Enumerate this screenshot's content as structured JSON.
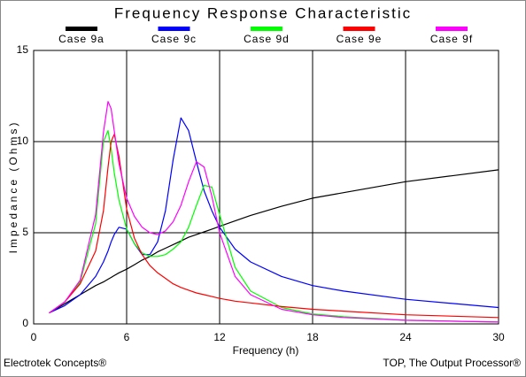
{
  "chart_data": {
    "type": "line",
    "title": "Frequency Response Characteristic",
    "x_label": "Frequency (h)",
    "y_label": "Impedance (Ohms)",
    "footer_left": "Electrotek Concepts®",
    "footer_right": "TOP, The Output Processor®",
    "x": [
      1,
      2,
      3,
      4,
      4.5,
      4.8,
      5,
      5.2,
      5.5,
      6,
      6.5,
      7,
      7.5,
      8,
      8.5,
      9,
      9.5,
      10,
      10.5,
      11,
      11.5,
      12,
      13,
      14,
      16,
      18,
      20,
      24,
      30
    ],
    "series": [
      {
        "name": "Case 9a",
        "color": "#000000",
        "values": [
          0.6,
          1.1,
          1.6,
          2.1,
          2.3,
          2.45,
          2.55,
          2.65,
          2.8,
          3.0,
          3.25,
          3.5,
          3.7,
          3.95,
          4.15,
          4.35,
          4.55,
          4.75,
          4.9,
          5.05,
          5.2,
          5.35,
          5.65,
          5.95,
          6.45,
          6.9,
          7.2,
          7.8,
          8.45
        ]
      },
      {
        "name": "Case 9c",
        "color": "#0000ff",
        "values": [
          0.6,
          1.0,
          1.6,
          2.6,
          3.4,
          4.0,
          4.5,
          4.9,
          5.3,
          5.2,
          4.4,
          3.8,
          3.8,
          4.5,
          6.2,
          9.0,
          11.3,
          10.6,
          8.9,
          7.3,
          6.2,
          5.3,
          4.1,
          3.4,
          2.6,
          2.1,
          1.8,
          1.35,
          0.9
        ]
      },
      {
        "name": "Case 9d",
        "color": "#00ff00",
        "values": [
          0.6,
          1.2,
          2.3,
          5.5,
          10.0,
          10.6,
          9.6,
          8.3,
          6.8,
          5.2,
          4.4,
          3.9,
          3.7,
          3.7,
          3.8,
          4.1,
          4.5,
          5.3,
          6.5,
          7.6,
          7.5,
          6.0,
          3.1,
          1.8,
          0.9,
          0.55,
          0.4,
          0.2,
          0.1
        ]
      },
      {
        "name": "Case 9e",
        "color": "#ff0000",
        "values": [
          0.6,
          1.2,
          2.2,
          4.0,
          6.2,
          8.6,
          10.0,
          10.4,
          9.2,
          6.3,
          4.7,
          3.8,
          3.2,
          2.8,
          2.5,
          2.2,
          2.0,
          1.85,
          1.7,
          1.6,
          1.5,
          1.4,
          1.25,
          1.15,
          0.95,
          0.8,
          0.7,
          0.5,
          0.35
        ]
      },
      {
        "name": "Case 9f",
        "color": "#ff00ff",
        "values": [
          0.6,
          1.2,
          2.4,
          6.0,
          10.5,
          12.2,
          11.8,
          10.6,
          8.8,
          6.9,
          5.9,
          5.3,
          5.0,
          4.9,
          5.1,
          5.6,
          6.5,
          7.8,
          8.9,
          8.6,
          7.0,
          5.0,
          2.6,
          1.6,
          0.8,
          0.5,
          0.35,
          0.2,
          0.1
        ]
      }
    ],
    "xlim": [
      0,
      30
    ],
    "ylim": [
      0,
      15
    ],
    "xticks": [
      0,
      6,
      12,
      18,
      24,
      30
    ],
    "yticks": [
      0,
      5,
      10,
      15
    ],
    "grid": true
  }
}
